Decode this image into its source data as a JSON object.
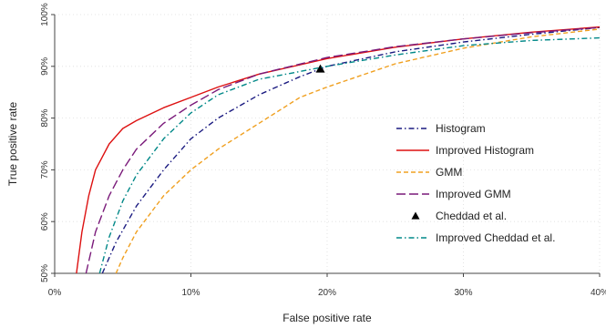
{
  "chart_data": {
    "type": "line",
    "title": "",
    "xlabel": "False positive rate",
    "ylabel": "True positive rate",
    "xlim": [
      0,
      0.4
    ],
    "ylim": [
      0.5,
      1.0
    ],
    "x_ticks": [
      0,
      0.1,
      0.2,
      0.3,
      0.4
    ],
    "x_tick_labels": [
      "0%",
      "10%",
      "20%",
      "30%",
      "40%"
    ],
    "y_ticks": [
      0.5,
      0.6,
      0.7,
      0.8,
      0.9,
      1.0
    ],
    "y_tick_labels": [
      "50%",
      "60%",
      "70%",
      "80%",
      "90%",
      "100%"
    ],
    "grid": true,
    "legend_position": "center-right",
    "series": [
      {
        "name": "Histogram",
        "kind": "line",
        "color": "#1a1a80",
        "dash": "dashdot",
        "x": [
          0.035,
          0.045,
          0.06,
          0.08,
          0.1,
          0.12,
          0.15,
          0.18,
          0.2,
          0.25,
          0.3,
          0.35,
          0.4
        ],
        "y": [
          0.5,
          0.56,
          0.63,
          0.7,
          0.76,
          0.8,
          0.845,
          0.88,
          0.9,
          0.928,
          0.947,
          0.962,
          0.975
        ]
      },
      {
        "name": "Improved Histogram",
        "kind": "line",
        "color": "#dd1111",
        "dash": "solid",
        "x": [
          0.016,
          0.02,
          0.025,
          0.03,
          0.04,
          0.05,
          0.06,
          0.08,
          0.1,
          0.12,
          0.15,
          0.2,
          0.25,
          0.3,
          0.35,
          0.4
        ],
        "y": [
          0.5,
          0.58,
          0.65,
          0.7,
          0.75,
          0.78,
          0.795,
          0.82,
          0.84,
          0.86,
          0.885,
          0.915,
          0.937,
          0.953,
          0.966,
          0.976
        ]
      },
      {
        "name": "GMM",
        "kind": "line",
        "color": "#f0a020",
        "dash": "dashed",
        "x": [
          0.045,
          0.05,
          0.06,
          0.08,
          0.1,
          0.12,
          0.15,
          0.18,
          0.2,
          0.25,
          0.3,
          0.35,
          0.4
        ],
        "y": [
          0.5,
          0.53,
          0.58,
          0.65,
          0.7,
          0.74,
          0.79,
          0.84,
          0.86,
          0.905,
          0.935,
          0.957,
          0.972
        ]
      },
      {
        "name": "Improved GMM",
        "kind": "line",
        "color": "#7a1a7a",
        "dash": "longdash",
        "x": [
          0.023,
          0.03,
          0.04,
          0.05,
          0.06,
          0.08,
          0.1,
          0.12,
          0.15,
          0.2,
          0.25,
          0.3,
          0.35,
          0.4
        ],
        "y": [
          0.5,
          0.58,
          0.65,
          0.7,
          0.74,
          0.79,
          0.825,
          0.855,
          0.885,
          0.917,
          0.938,
          0.953,
          0.965,
          0.975
        ]
      },
      {
        "name": "Cheddad et al.",
        "kind": "point",
        "color": "#000000",
        "marker": "triangle",
        "x": [
          0.195
        ],
        "y": [
          0.895
        ]
      },
      {
        "name": "Improved Cheddad et al.",
        "kind": "line",
        "color": "#008888",
        "dash": "dashdot",
        "x": [
          0.033,
          0.04,
          0.05,
          0.06,
          0.08,
          0.1,
          0.12,
          0.15,
          0.2,
          0.25,
          0.3,
          0.35,
          0.4
        ],
        "y": [
          0.5,
          0.57,
          0.64,
          0.69,
          0.76,
          0.81,
          0.845,
          0.875,
          0.9,
          0.922,
          0.94,
          0.95,
          0.955
        ]
      }
    ]
  }
}
